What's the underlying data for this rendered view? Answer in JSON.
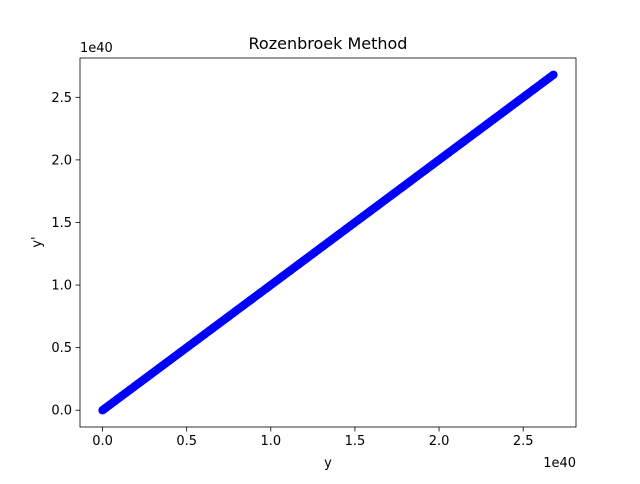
{
  "chart_data": {
    "type": "scatter",
    "title": "Rozenbroek Method",
    "xlabel": "y",
    "ylabel": "y'",
    "x_offset_text": "1e40",
    "y_offset_text": "1e40",
    "xlim": [
      -0.134,
      2.814
    ],
    "ylim": [
      -0.134,
      2.814
    ],
    "x_ticks": [
      0.0,
      0.5,
      1.0,
      1.5,
      2.0,
      2.5
    ],
    "x_tick_labels": [
      "0.0",
      "0.5",
      "1.0",
      "1.5",
      "2.0",
      "2.5"
    ],
    "y_ticks": [
      0.0,
      0.5,
      1.0,
      1.5,
      2.0,
      2.5
    ],
    "y_tick_labels": [
      "0.0",
      "0.5",
      "1.0",
      "1.5",
      "2.0",
      "2.5"
    ],
    "grid": false,
    "legend": "none",
    "marker_color": "#0000ff",
    "series": [
      {
        "x": [
          0.0,
          0.01,
          0.02,
          0.04,
          0.06,
          0.08,
          0.1,
          0.13,
          0.16,
          0.2,
          0.24,
          0.28,
          0.32,
          0.36,
          0.4,
          0.45,
          0.5,
          0.55,
          0.6,
          0.65,
          0.7,
          0.75,
          0.8,
          0.85,
          0.9,
          0.95,
          1.0,
          1.05,
          1.1,
          1.15,
          1.2,
          1.25,
          1.3,
          1.35,
          1.4,
          1.45,
          1.5,
          1.55,
          1.6,
          1.65,
          1.7,
          1.75,
          1.8,
          1.85,
          1.9,
          1.95,
          2.0,
          2.05,
          2.1,
          2.15,
          2.2,
          2.25,
          2.3,
          2.35,
          2.4,
          2.45,
          2.5,
          2.55,
          2.6,
          2.64,
          2.68
        ],
        "y": [
          0.0,
          0.01,
          0.02,
          0.04,
          0.06,
          0.08,
          0.1,
          0.13,
          0.16,
          0.2,
          0.24,
          0.28,
          0.32,
          0.36,
          0.4,
          0.45,
          0.5,
          0.55,
          0.6,
          0.65,
          0.7,
          0.75,
          0.8,
          0.85,
          0.9,
          0.95,
          1.0,
          1.05,
          1.1,
          1.15,
          1.2,
          1.25,
          1.3,
          1.35,
          1.4,
          1.45,
          1.5,
          1.55,
          1.6,
          1.65,
          1.7,
          1.75,
          1.8,
          1.85,
          1.9,
          1.95,
          2.0,
          2.05,
          2.1,
          2.15,
          2.2,
          2.25,
          2.3,
          2.35,
          2.4,
          2.45,
          2.5,
          2.55,
          2.6,
          2.64,
          2.68
        ]
      }
    ]
  }
}
